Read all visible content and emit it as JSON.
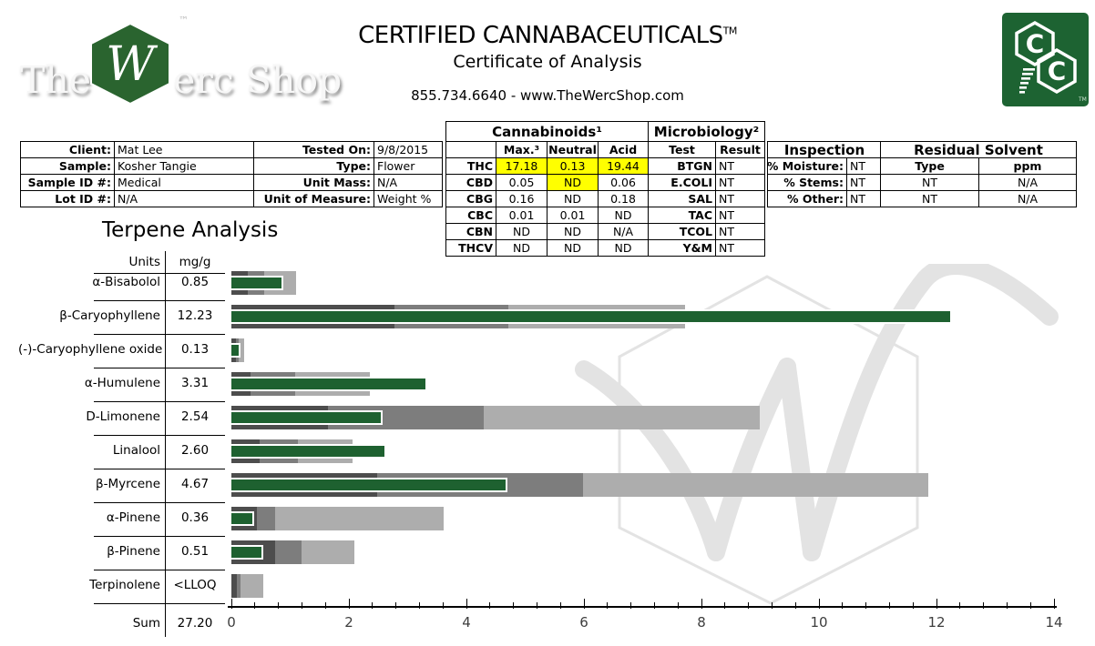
{
  "header": {
    "logo_the": "The",
    "logo_rest": "erc Shop",
    "logo_w": "W",
    "logo_tm": "™",
    "title": "CERTIFIED CANNABACEUTICALS",
    "title_tm": "TM",
    "subtitle": "Certificate of Analysis",
    "contact": "855.734.6640 - www.TheWercShop.com",
    "cc_logo": {
      "top_letter": "C",
      "bottom_letter": "C",
      "tm": "TM"
    }
  },
  "sample_info": {
    "rows": [
      {
        "label": "Client:",
        "value": "Mat Lee",
        "label2": "Tested On:",
        "value2": "9/8/2015"
      },
      {
        "label": "Sample:",
        "value": "Kosher Tangie",
        "label2": "Type:",
        "value2": "Flower"
      },
      {
        "label": "Sample ID #:",
        "value": "Medical",
        "label2": "Unit Mass:",
        "value2": "N/A"
      },
      {
        "label": "Lot ID #:",
        "value": "N/A",
        "label2": "Unit of Measure:",
        "value2": "Weight %"
      }
    ]
  },
  "cannabinoids": {
    "title": "Cannabinoids¹",
    "columns": [
      "Max.³",
      "Neutral",
      "Acid"
    ],
    "rows": [
      {
        "name": "THC",
        "values": [
          "17.18",
          "0.13",
          "19.44"
        ],
        "highlight": [
          0,
          1,
          2
        ]
      },
      {
        "name": "CBD",
        "values": [
          "0.05",
          "ND",
          "0.06"
        ],
        "highlight": [
          1
        ]
      },
      {
        "name": "CBG",
        "values": [
          "0.16",
          "ND",
          "0.18"
        ],
        "highlight": []
      },
      {
        "name": "CBC",
        "values": [
          "0.01",
          "0.01",
          "ND"
        ],
        "highlight": []
      },
      {
        "name": "CBN",
        "values": [
          "ND",
          "ND",
          "N/A"
        ],
        "highlight": []
      },
      {
        "name": "THCV",
        "values": [
          "ND",
          "ND",
          "ND"
        ],
        "highlight": []
      }
    ]
  },
  "microbiology": {
    "title": "Microbiology²",
    "columns": [
      "Test",
      "Result"
    ],
    "rows": [
      [
        "BTGN",
        "NT"
      ],
      [
        "E.COLI",
        "NT"
      ],
      [
        "SAL",
        "NT"
      ],
      [
        "TAC",
        "NT"
      ],
      [
        "TCOL",
        "NT"
      ],
      [
        "Y&M",
        "NT"
      ]
    ]
  },
  "inspection": {
    "title": "Inspection",
    "rows": [
      [
        "% Moisture:",
        "NT"
      ],
      [
        "% Stems:",
        "NT"
      ],
      [
        "% Other:",
        "NT"
      ]
    ]
  },
  "residual_solvent": {
    "title": "Residual Solvent",
    "columns": [
      "Type",
      "ppm"
    ],
    "rows": [
      [
        "NT",
        "N/A"
      ],
      [
        "NT",
        "N/A"
      ]
    ]
  },
  "terpenes": {
    "title": "Terpene Analysis",
    "units_label": "Units",
    "units_value": "mg/g",
    "sum_label": "Sum",
    "sum_value": "27.20"
  },
  "chart_data": {
    "type": "bar",
    "orientation": "horizontal",
    "title": "Terpene Analysis",
    "xlabel": "mg/g",
    "xlim": [
      0,
      14
    ],
    "x_major_ticks": [
      0,
      2,
      4,
      6,
      8,
      10,
      12,
      14
    ],
    "x_minor_step": 0.4,
    "grid": false,
    "categories": [
      "α-Bisabolol",
      "β-Caryophyllene",
      "(-)-Caryophyllene oxide",
      "α-Humulene",
      "D-Limonene",
      "Linalool",
      "β-Myrcene",
      "α-Pinene",
      "β-Pinene",
      "Terpinolene"
    ],
    "value_labels": [
      "0.85",
      "12.23",
      "0.13",
      "3.31",
      "2.54",
      "2.60",
      "4.67",
      "0.36",
      "0.51",
      "<LLOQ"
    ],
    "series": [
      {
        "name": "Sample value",
        "role": "measure",
        "color": "#1e6130",
        "values": [
          0.85,
          12.23,
          0.13,
          3.31,
          2.54,
          2.6,
          4.67,
          0.36,
          0.51,
          0
        ]
      },
      {
        "name": "Reference range dark",
        "role": "range-low",
        "color": "#4d4d4d",
        "values": [
          0.28,
          2.78,
          0.07,
          0.33,
          1.64,
          0.48,
          2.48,
          0.43,
          0.75,
          0.1
        ]
      },
      {
        "name": "Reference range mid",
        "role": "range-mid",
        "color": "#7d7d7d",
        "values": [
          0.56,
          4.72,
          0.12,
          1.09,
          4.3,
          1.13,
          5.99,
          0.75,
          1.19,
          0.15
        ]
      },
      {
        "name": "Reference range light",
        "role": "range-high",
        "color": "#adadad",
        "values": [
          1.1,
          7.72,
          0.22,
          2.36,
          8.99,
          2.06,
          11.86,
          3.62,
          2.09,
          0.55
        ]
      }
    ],
    "sum": {
      "label": "Sum",
      "value": 27.2
    }
  },
  "colors": {
    "accent_green": "#1e6130",
    "logo_green": "#2a642f",
    "highlight_yellow": "#ffff00",
    "range_dark": "#4d4d4d",
    "range_mid": "#7d7d7d",
    "range_light": "#adadad",
    "watermark_gray": "#e3e3e3"
  }
}
